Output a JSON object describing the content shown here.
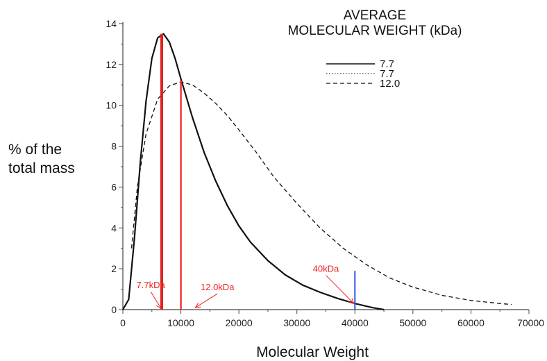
{
  "chart_data": {
    "type": "line",
    "xlabel": "Molecular Weight",
    "ylabel": [
      "% of the",
      "total mass"
    ],
    "xlim": [
      0,
      70000
    ],
    "ylim": [
      0,
      14
    ],
    "x_ticks": [
      0,
      10000,
      20000,
      30000,
      40000,
      50000,
      60000,
      70000
    ],
    "y_ticks": [
      0,
      2,
      4,
      6,
      8,
      10,
      12,
      14
    ],
    "grid": false,
    "legend": {
      "title": [
        "AVERAGE",
        "MOLECULAR WEIGHT (kDa)"
      ],
      "placement": "top-right",
      "entries": [
        {
          "label": "7.7",
          "style": "solid",
          "width": 1.6
        },
        {
          "label": "7.7",
          "style": "dotted",
          "width": 1
        },
        {
          "label": "12.0",
          "style": "dashed",
          "width": 1.2
        }
      ]
    },
    "series": [
      {
        "name": "7.7",
        "style": "solid",
        "width": 2.2,
        "color": "#111111",
        "x": [
          0,
          1000,
          2000,
          3000,
          4000,
          5000,
          6000,
          7000,
          8000,
          9000,
          10000,
          12000,
          14000,
          16000,
          18000,
          20000,
          22000,
          25000,
          28000,
          31000,
          34000,
          37000,
          40000,
          43000,
          45000
        ],
        "y": [
          0.0,
          0.5,
          3.5,
          7.2,
          10.2,
          12.3,
          13.3,
          13.5,
          13.1,
          12.3,
          11.3,
          9.4,
          7.7,
          6.3,
          5.1,
          4.1,
          3.3,
          2.4,
          1.7,
          1.2,
          0.85,
          0.55,
          0.3,
          0.1,
          0.0
        ]
      },
      {
        "name": "12.0",
        "style": "dashed",
        "width": 1.3,
        "color": "#111111",
        "x": [
          1500,
          2500,
          4000,
          6000,
          8000,
          10000,
          12000,
          14000,
          16000,
          18000,
          20000,
          23000,
          26000,
          30000,
          34000,
          38000,
          42000,
          46000,
          50000,
          55000,
          60000,
          65000,
          67000
        ],
        "y": [
          3.0,
          6.0,
          8.6,
          10.3,
          10.95,
          11.15,
          11.0,
          10.6,
          10.1,
          9.5,
          8.8,
          7.7,
          6.5,
          5.2,
          4.0,
          3.0,
          2.2,
          1.55,
          1.1,
          0.7,
          0.45,
          0.3,
          0.25
        ]
      }
    ],
    "markers": [
      {
        "x": 6700,
        "y_top": 13.5,
        "color": "#dd2222",
        "width": 4
      },
      {
        "x": 10000,
        "y_top": 11.2,
        "color": "#ee3333",
        "width": 2.5
      },
      {
        "x": 40000,
        "y_top": 1.9,
        "color": "#3355ee",
        "width": 2
      }
    ],
    "annotations": [
      {
        "text": "7.7kDa",
        "color": "#ee2222",
        "text_x": 4800,
        "text_y": 1.05,
        "target_x": 6600,
        "target_y": 0.05
      },
      {
        "text": "12.0kDa",
        "color": "#ee2222",
        "text_x": 16300,
        "text_y": 0.95,
        "target_x": 12500,
        "target_y": 0.1
      },
      {
        "text": "40kDa",
        "color": "#ee2222",
        "text_x": 35000,
        "text_y": 1.85,
        "target_x": 39800,
        "target_y": 0.3
      }
    ]
  }
}
